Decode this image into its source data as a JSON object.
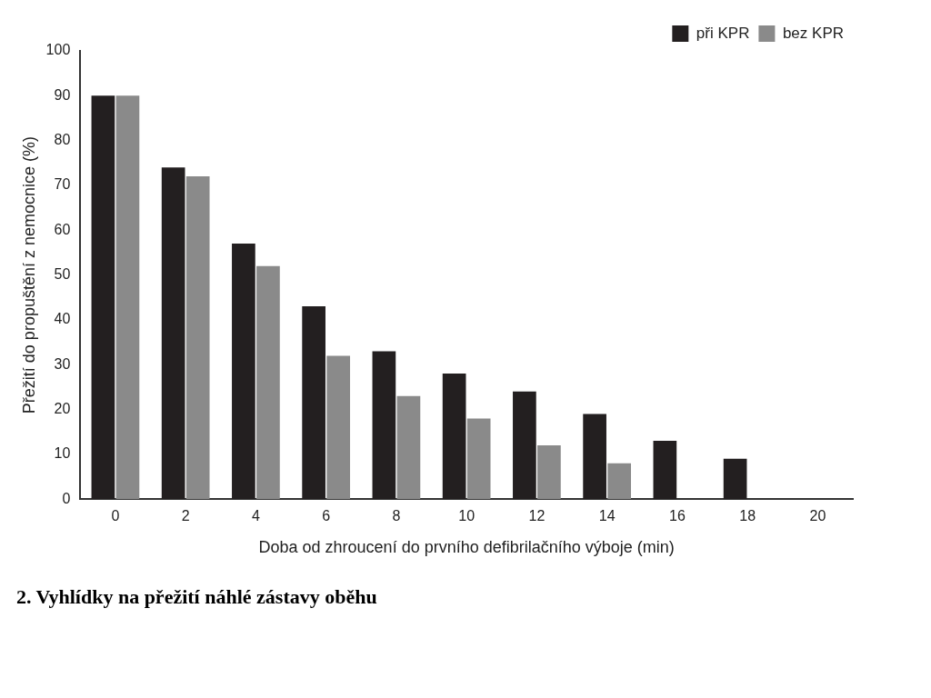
{
  "chart_data": {
    "type": "bar",
    "xlabel": "Doba od zhroucení do prvního defibrilačního výboje (min)",
    "ylabel": "Přežití do propuštění z nemocnice (%)",
    "categories": [
      "0",
      "2",
      "4",
      "6",
      "8",
      "10",
      "12",
      "14",
      "16",
      "18",
      "20"
    ],
    "series": [
      {
        "name": "při KPR",
        "color": "#231f20",
        "values": [
          90,
          74,
          57,
          43,
          33,
          28,
          24,
          19,
          13,
          9,
          null
        ]
      },
      {
        "name": "bez KPR",
        "color": "#8a8a8a",
        "values": [
          90,
          72,
          52,
          32,
          23,
          18,
          12,
          8,
          null,
          null,
          null
        ]
      }
    ],
    "ylim": [
      0,
      100
    ],
    "yticks": [
      0,
      10,
      20,
      30,
      40,
      50,
      60,
      70,
      80,
      90,
      100
    ],
    "grid": false,
    "legend": "top right",
    "annotations": [
      "2. Vyhlídky na přežití náhlé zástavy oběhu"
    ]
  }
}
